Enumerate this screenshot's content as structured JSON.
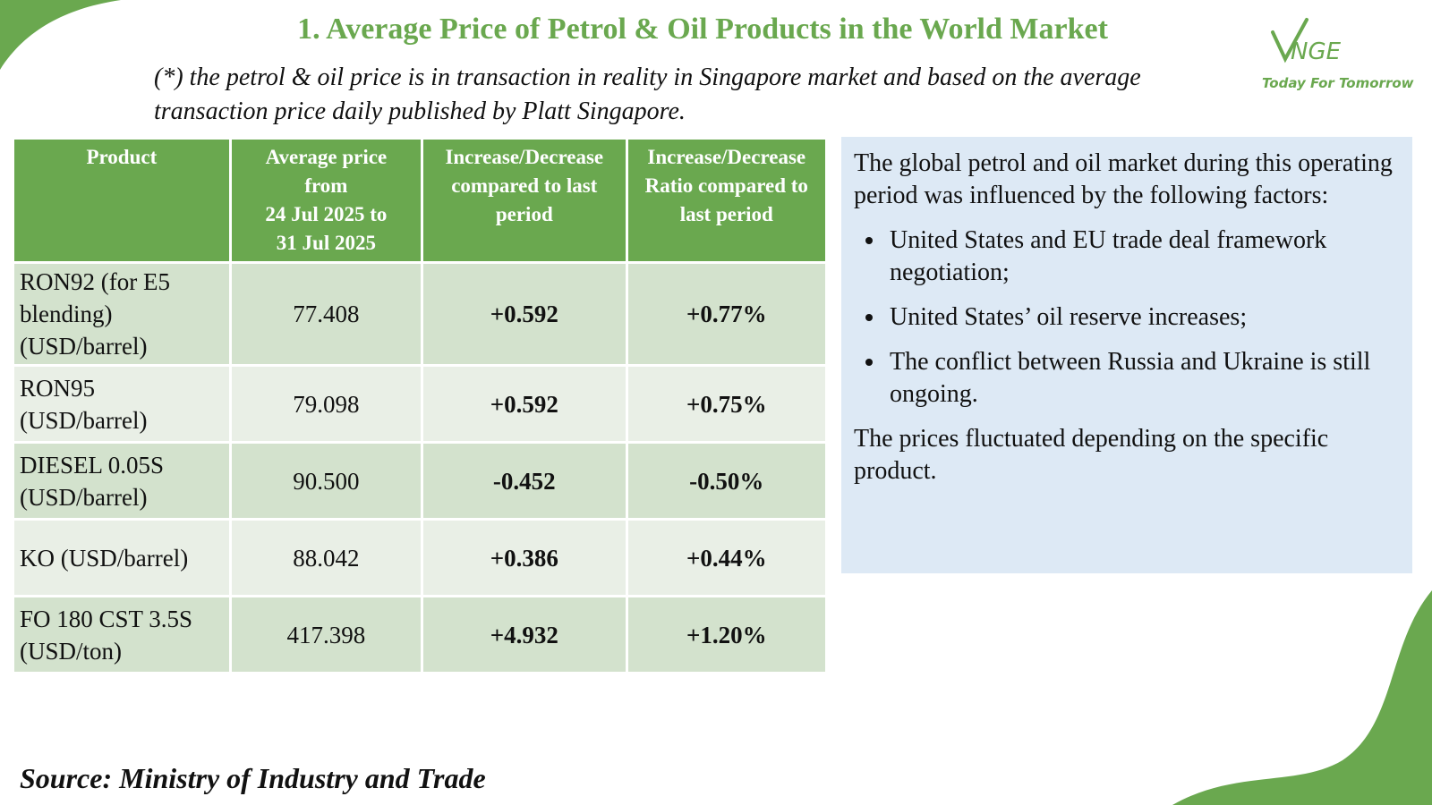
{
  "colors": {
    "brand_green": "#6aa84f",
    "header_bg": "#6aa84f",
    "row_dark": "#d3e2cd",
    "row_light": "#e9efe6",
    "info_bg": "#dde9f5",
    "positive": "#16a34a",
    "negative": "#e11d1d"
  },
  "header": {
    "title": "1. Average Price of Petrol & Oil Products in the World Market",
    "subtitle": "(*) the petrol & oil price is in transaction in reality in Singapore market and based on the average transaction price daily published by Platt Singapore."
  },
  "logo": {
    "name": "VNGE",
    "tagline": "Today For Tomorrow"
  },
  "table": {
    "columns": {
      "product": "Product",
      "avg_line1": "Average price",
      "avg_line2": "from",
      "avg_line3": "24 Jul 2025 to",
      "avg_line4": "31 Jul 2025",
      "change": "Increase/Decrease compared to last period",
      "ratio": "Increase/Decrease Ratio compared to last period"
    },
    "rows": [
      {
        "product": "RON92 (for E5 blending) (USD/barrel)",
        "price": "77.408",
        "change": "+0.592",
        "ratio": "+0.77%"
      },
      {
        "product": "RON95 (USD/barrel)",
        "price": "79.098",
        "change": "+0.592",
        "ratio": "+0.75%"
      },
      {
        "product": "DIESEL 0.05S (USD/barrel)",
        "price": "90.500",
        "change": "-0.452",
        "ratio": "-0.50%"
      },
      {
        "product": "KO (USD/barrel)",
        "price": "88.042",
        "change": "+0.386",
        "ratio": "+0.44%"
      },
      {
        "product": "FO 180 CST 3.5S (USD/ton)",
        "price": "417.398",
        "change": "+4.932",
        "ratio": "+1.20%"
      }
    ]
  },
  "info": {
    "intro": "The global petrol and oil market during this operating period was influenced by the following factors:",
    "bullets": [
      "United States and EU trade deal framework negotiation;",
      "United States’ oil reserve increases;",
      "The conflict between Russia and Ukraine is still ongoing."
    ],
    "outro": "The prices fluctuated depending on the specific product."
  },
  "source": "Source: Ministry of Industry and Trade"
}
